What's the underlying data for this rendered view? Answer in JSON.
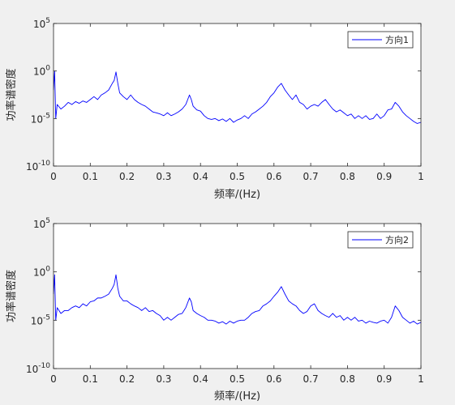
{
  "figure": {
    "background": "#f0f0f0",
    "axes_background": "#ffffff",
    "line_color": "#0000ff",
    "axes_color": "#262626"
  },
  "chart_data": [
    {
      "type": "line",
      "xlabel": "频率/(Hz)",
      "ylabel": "功率谱密度",
      "xlim": [
        0,
        1
      ],
      "ylim": [
        1e-10,
        100000.0
      ],
      "yscale": "log",
      "grid": false,
      "legend_position": "top-right",
      "xticks": [
        0,
        0.1,
        0.2,
        0.3,
        0.4,
        0.5,
        0.6,
        0.7,
        0.8,
        0.9,
        1
      ],
      "xtick_labels": [
        "0",
        "0.1",
        "0.2",
        "0.3",
        "0.4",
        "0.5",
        "0.6",
        "0.7",
        "0.8",
        "0.9",
        "1"
      ],
      "yticks": [
        1e-10,
        1e-05,
        1,
        100000.0
      ],
      "ytick_labels": [
        {
          "base": "10",
          "exp": "-10"
        },
        {
          "base": "10",
          "exp": "-5"
        },
        {
          "base": "10",
          "exp": "0"
        },
        {
          "base": "10",
          "exp": "5"
        }
      ],
      "series": [
        {
          "name": "方向1",
          "color": "#0000ff",
          "x": [
            0,
            0.003,
            0.006,
            0.01,
            0.02,
            0.03,
            0.04,
            0.05,
            0.06,
            0.07,
            0.08,
            0.09,
            0.1,
            0.11,
            0.12,
            0.13,
            0.14,
            0.15,
            0.16,
            0.165,
            0.17,
            0.175,
            0.18,
            0.19,
            0.2,
            0.21,
            0.22,
            0.23,
            0.24,
            0.25,
            0.26,
            0.27,
            0.28,
            0.29,
            0.3,
            0.31,
            0.32,
            0.33,
            0.34,
            0.35,
            0.36,
            0.37,
            0.375,
            0.38,
            0.39,
            0.4,
            0.41,
            0.42,
            0.43,
            0.44,
            0.45,
            0.46,
            0.47,
            0.48,
            0.49,
            0.5,
            0.51,
            0.52,
            0.53,
            0.54,
            0.55,
            0.56,
            0.57,
            0.58,
            0.59,
            0.6,
            0.61,
            0.62,
            0.63,
            0.64,
            0.65,
            0.66,
            0.67,
            0.68,
            0.69,
            0.7,
            0.71,
            0.72,
            0.73,
            0.74,
            0.75,
            0.76,
            0.77,
            0.78,
            0.79,
            0.8,
            0.81,
            0.82,
            0.83,
            0.84,
            0.85,
            0.86,
            0.87,
            0.88,
            0.89,
            0.9,
            0.91,
            0.92,
            0.93,
            0.94,
            0.95,
            0.96,
            0.97,
            0.98,
            0.99,
            1
          ],
          "y": [
            0.01,
            1,
            1e-05,
            0.0003,
            0.0001,
            0.0002,
            0.0005,
            0.0003,
            0.0006,
            0.0004,
            0.0007,
            0.0005,
            0.001,
            0.002,
            0.001,
            0.003,
            0.005,
            0.01,
            0.05,
            0.1,
            0.8,
            0.05,
            0.005,
            0.002,
            0.001,
            0.003,
            0.001,
            0.0005,
            0.0003,
            0.0002,
            0.0001,
            5e-05,
            4e-05,
            3e-05,
            2e-05,
            4e-05,
            2e-05,
            3e-05,
            5e-05,
            0.0001,
            0.0003,
            0.003,
            0.001,
            0.0002,
            8e-05,
            6e-05,
            2e-05,
            1e-05,
            8e-06,
            1e-05,
            6e-06,
            9e-06,
            5e-06,
            1e-05,
            4e-06,
            7e-06,
            1e-05,
            2e-05,
            1e-05,
            3e-05,
            5e-05,
            0.0001,
            0.0002,
            0.0005,
            0.002,
            0.005,
            0.02,
            0.05,
            0.01,
            0.003,
            0.001,
            0.003,
            0.0005,
            0.0003,
            0.0001,
            0.0002,
            0.0003,
            0.0002,
            0.0005,
            0.001,
            0.0003,
            0.0001,
            5e-05,
            8e-05,
            4e-05,
            2e-05,
            3e-05,
            1e-05,
            2e-05,
            1e-05,
            2e-05,
            8e-06,
            1e-05,
            3e-05,
            1e-05,
            2e-05,
            8e-05,
            0.0001,
            0.0005,
            0.0002,
            5e-05,
            2e-05,
            1e-05,
            5e-06,
            3e-06,
            4e-06
          ]
        }
      ]
    },
    {
      "type": "line",
      "xlabel": "频率/(Hz)",
      "ylabel": "功率谱密度",
      "xlim": [
        0,
        1
      ],
      "ylim": [
        1e-10,
        100000.0
      ],
      "yscale": "log",
      "grid": false,
      "legend_position": "top-right",
      "xticks": [
        0,
        0.1,
        0.2,
        0.3,
        0.4,
        0.5,
        0.6,
        0.7,
        0.8,
        0.9,
        1
      ],
      "xtick_labels": [
        "0",
        "0.1",
        "0.2",
        "0.3",
        "0.4",
        "0.5",
        "0.6",
        "0.7",
        "0.8",
        "0.9",
        "1"
      ],
      "yticks": [
        1e-10,
        1e-05,
        1,
        100000.0
      ],
      "ytick_labels": [
        {
          "base": "10",
          "exp": "-10"
        },
        {
          "base": "10",
          "exp": "-5"
        },
        {
          "base": "10",
          "exp": "0"
        },
        {
          "base": "10",
          "exp": "5"
        }
      ],
      "series": [
        {
          "name": "方向2",
          "color": "#0000ff",
          "x": [
            0,
            0.003,
            0.006,
            0.01,
            0.02,
            0.03,
            0.04,
            0.05,
            0.06,
            0.07,
            0.08,
            0.09,
            0.1,
            0.11,
            0.12,
            0.13,
            0.14,
            0.15,
            0.16,
            0.165,
            0.17,
            0.175,
            0.18,
            0.19,
            0.2,
            0.21,
            0.22,
            0.23,
            0.24,
            0.25,
            0.26,
            0.27,
            0.28,
            0.29,
            0.3,
            0.31,
            0.32,
            0.33,
            0.34,
            0.35,
            0.36,
            0.37,
            0.375,
            0.38,
            0.39,
            0.4,
            0.41,
            0.42,
            0.43,
            0.44,
            0.45,
            0.46,
            0.47,
            0.48,
            0.49,
            0.5,
            0.51,
            0.52,
            0.53,
            0.54,
            0.55,
            0.56,
            0.57,
            0.58,
            0.59,
            0.6,
            0.61,
            0.62,
            0.63,
            0.64,
            0.65,
            0.66,
            0.67,
            0.68,
            0.69,
            0.7,
            0.71,
            0.72,
            0.73,
            0.74,
            0.75,
            0.76,
            0.77,
            0.78,
            0.79,
            0.8,
            0.81,
            0.82,
            0.83,
            0.84,
            0.85,
            0.86,
            0.87,
            0.88,
            0.89,
            0.9,
            0.91,
            0.92,
            0.93,
            0.94,
            0.95,
            0.96,
            0.97,
            0.98,
            0.99,
            1
          ],
          "y": [
            0.005,
            0.5,
            1e-05,
            0.0002,
            5e-05,
            0.0001,
            0.0001,
            0.0002,
            0.0003,
            0.0002,
            0.0005,
            0.0003,
            0.0008,
            0.001,
            0.002,
            0.002,
            0.003,
            0.005,
            0.02,
            0.05,
            0.5,
            0.02,
            0.003,
            0.001,
            0.001,
            0.0005,
            0.0003,
            0.0002,
            0.0001,
            0.0002,
            8e-05,
            0.0001,
            5e-05,
            3e-05,
            1e-05,
            2e-05,
            1e-05,
            2e-05,
            4e-05,
            5e-05,
            0.0002,
            0.002,
            0.0008,
            0.0001,
            5e-05,
            3e-05,
            2e-05,
            1e-05,
            1e-05,
            8e-06,
            5e-06,
            7e-06,
            4e-06,
            8e-06,
            5e-06,
            8e-06,
            1e-05,
            1e-05,
            2e-05,
            5e-05,
            8e-05,
            0.0001,
            0.0003,
            0.0005,
            0.001,
            0.003,
            0.008,
            0.03,
            0.005,
            0.001,
            0.0005,
            0.0003,
            0.0001,
            5e-05,
            8e-05,
            0.0003,
            0.0005,
            0.0001,
            5e-05,
            3e-05,
            2e-05,
            5e-05,
            2e-05,
            3e-05,
            1e-05,
            2e-05,
            1e-05,
            2e-05,
            8e-06,
            1e-05,
            5e-06,
            8e-06,
            6e-06,
            5e-06,
            8e-06,
            1e-05,
            5e-06,
            2e-05,
            0.0003,
            0.0001,
            2e-05,
            1e-05,
            5e-06,
            8e-06,
            4e-06,
            6e-06
          ]
        }
      ]
    }
  ]
}
